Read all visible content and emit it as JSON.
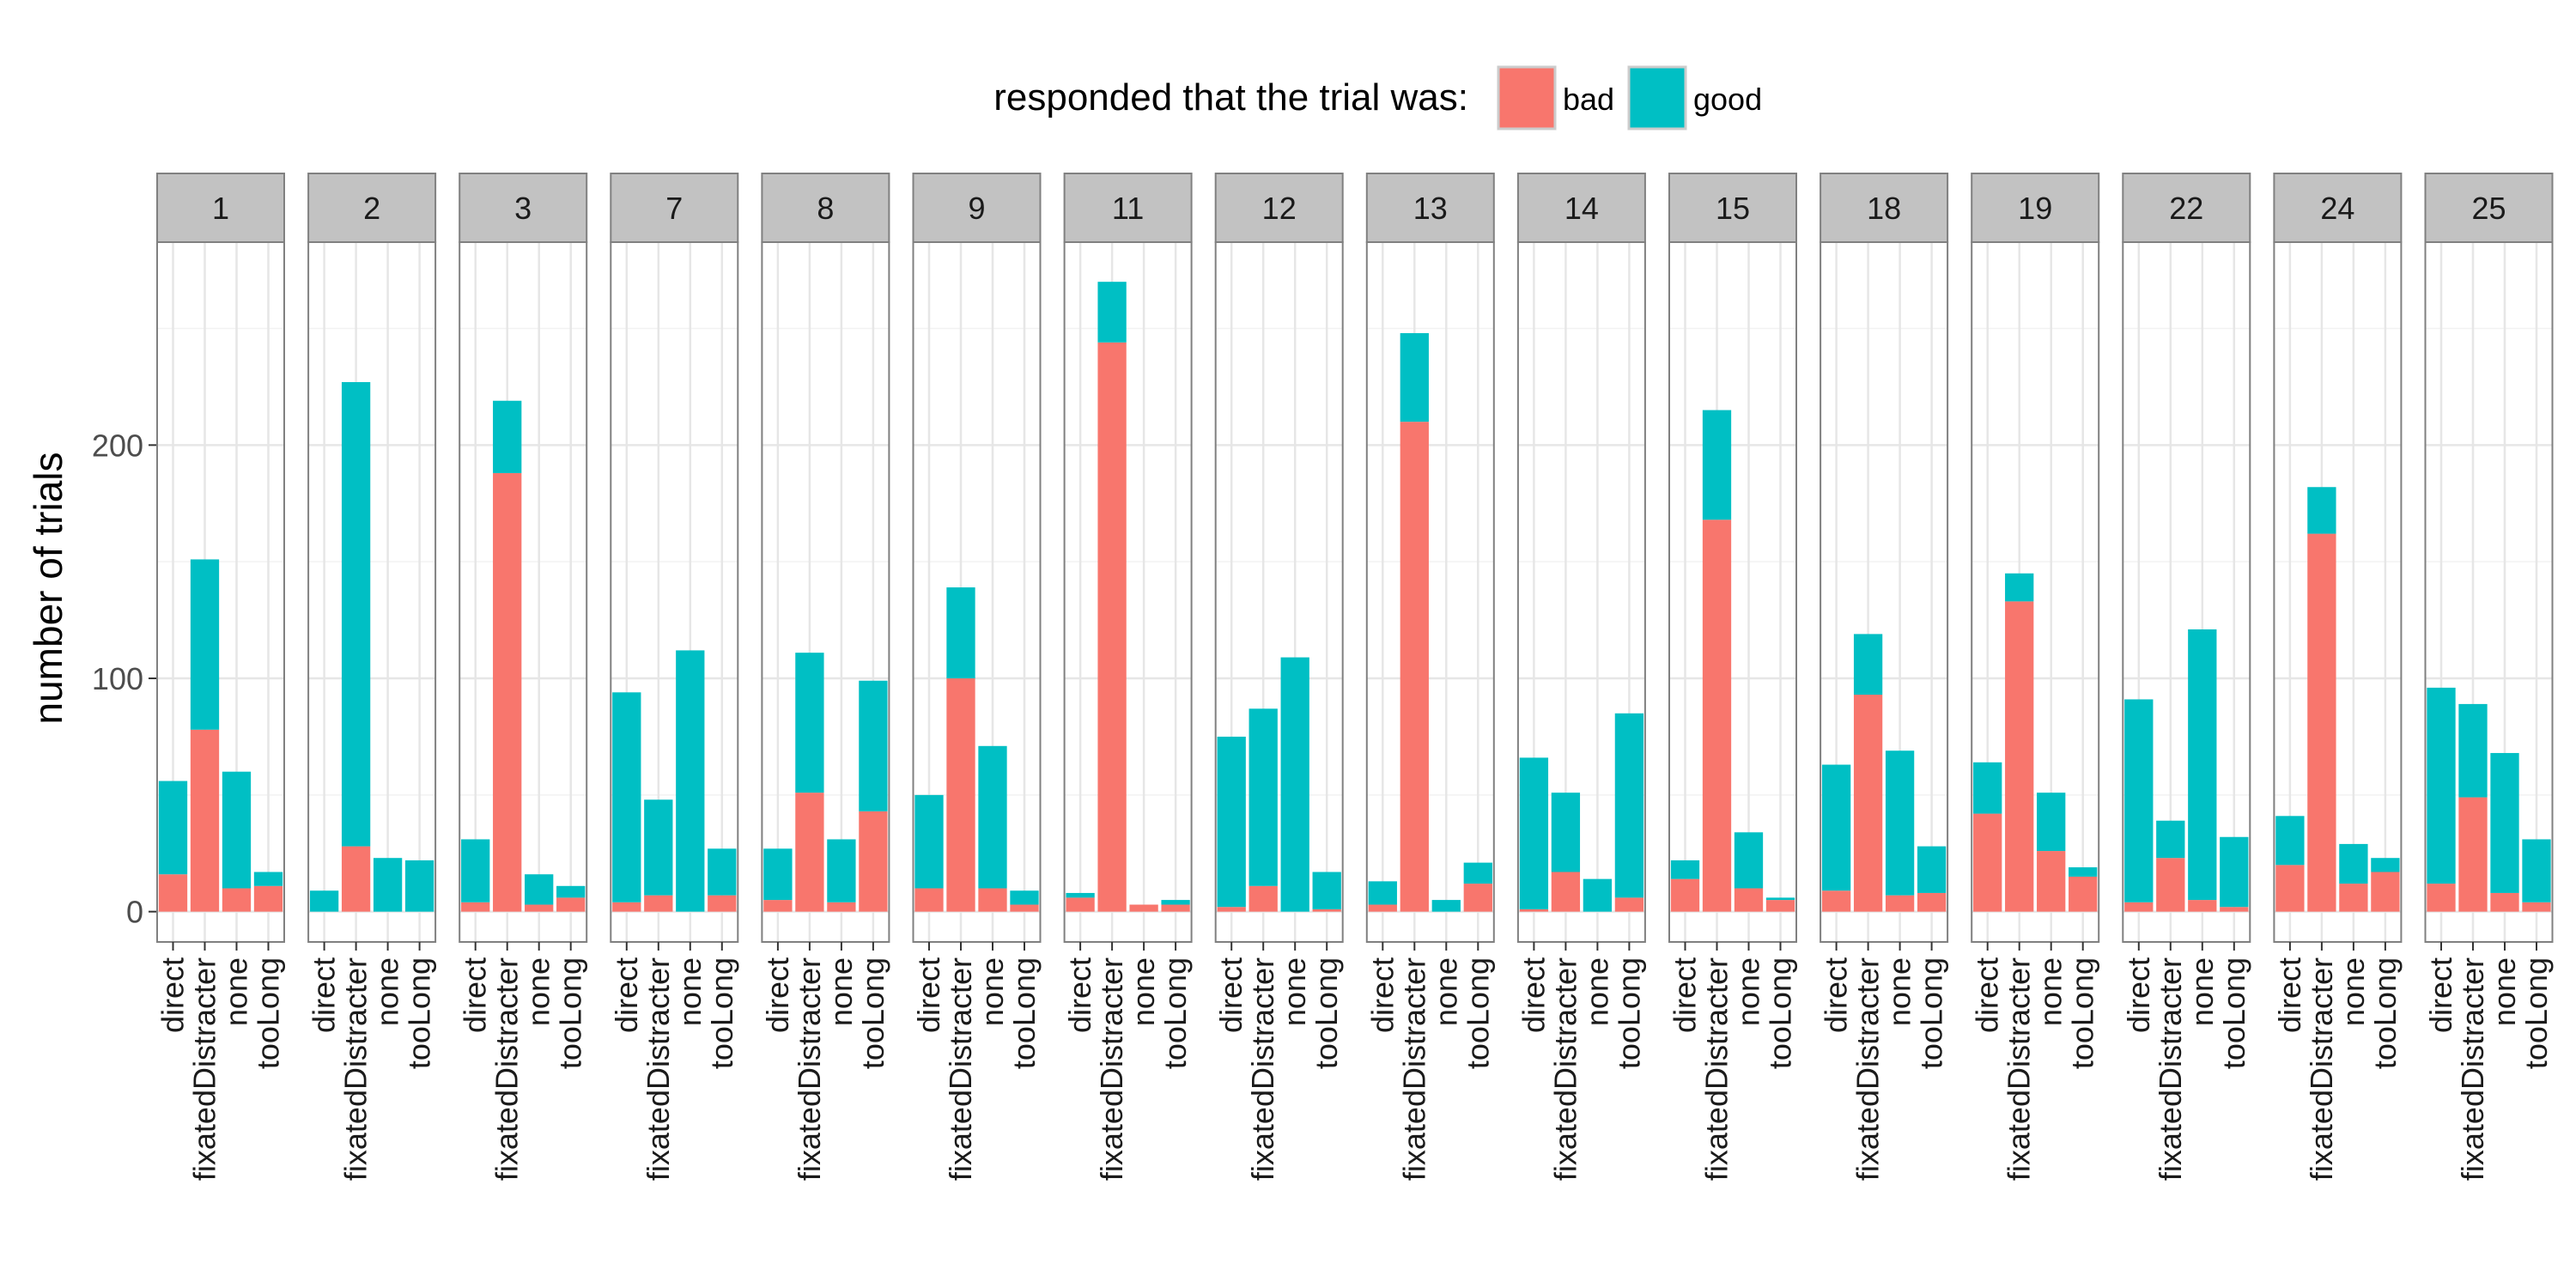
{
  "chart_data": {
    "type": "bar",
    "stacked": true,
    "facets": [
      "1",
      "2",
      "3",
      "7",
      "8",
      "9",
      "11",
      "12",
      "13",
      "14",
      "15",
      "18",
      "19",
      "22",
      "24",
      "25"
    ],
    "categories": [
      "direct",
      "fixatedDistracter",
      "none",
      "tooLong"
    ],
    "ylabel": "number of trials",
    "xlabel": "",
    "ylim": [
      -13,
      287
    ],
    "yticks": [
      0,
      100,
      200
    ],
    "grid": true,
    "legend": {
      "title": "responded that the trial was:",
      "position": "top",
      "entries": [
        "bad",
        "good"
      ]
    },
    "series": [
      {
        "name": "bad",
        "color": "#F8766D",
        "values": [
          [
            16,
            78,
            10,
            11
          ],
          [
            0,
            28,
            0,
            0
          ],
          [
            4,
            188,
            3,
            6
          ],
          [
            4,
            7,
            0,
            7
          ],
          [
            5,
            51,
            4,
            43
          ],
          [
            10,
            100,
            10,
            3
          ],
          [
            6,
            244,
            3,
            3
          ],
          [
            2,
            11,
            0,
            1
          ],
          [
            3,
            210,
            0,
            12
          ],
          [
            1,
            17,
            0,
            6
          ],
          [
            14,
            168,
            10,
            5
          ],
          [
            9,
            93,
            7,
            8
          ],
          [
            42,
            133,
            26,
            15
          ],
          [
            4,
            23,
            5,
            2
          ],
          [
            20,
            162,
            12,
            17
          ],
          [
            12,
            49,
            8,
            4
          ]
        ]
      },
      {
        "name": "good",
        "color": "#00BFC4",
        "values": [
          [
            40,
            73,
            50,
            6
          ],
          [
            9,
            199,
            23,
            22
          ],
          [
            27,
            31,
            13,
            5
          ],
          [
            90,
            41,
            112,
            20
          ],
          [
            22,
            60,
            27,
            56
          ],
          [
            40,
            39,
            61,
            6
          ],
          [
            2,
            26,
            0,
            2
          ],
          [
            73,
            76,
            109,
            16
          ],
          [
            10,
            38,
            5,
            9
          ],
          [
            65,
            34,
            14,
            79
          ],
          [
            8,
            47,
            24,
            1
          ],
          [
            54,
            26,
            62,
            20
          ],
          [
            22,
            12,
            25,
            4
          ],
          [
            87,
            16,
            116,
            30
          ],
          [
            21,
            20,
            17,
            6
          ],
          [
            84,
            40,
            60,
            27
          ]
        ]
      }
    ]
  }
}
